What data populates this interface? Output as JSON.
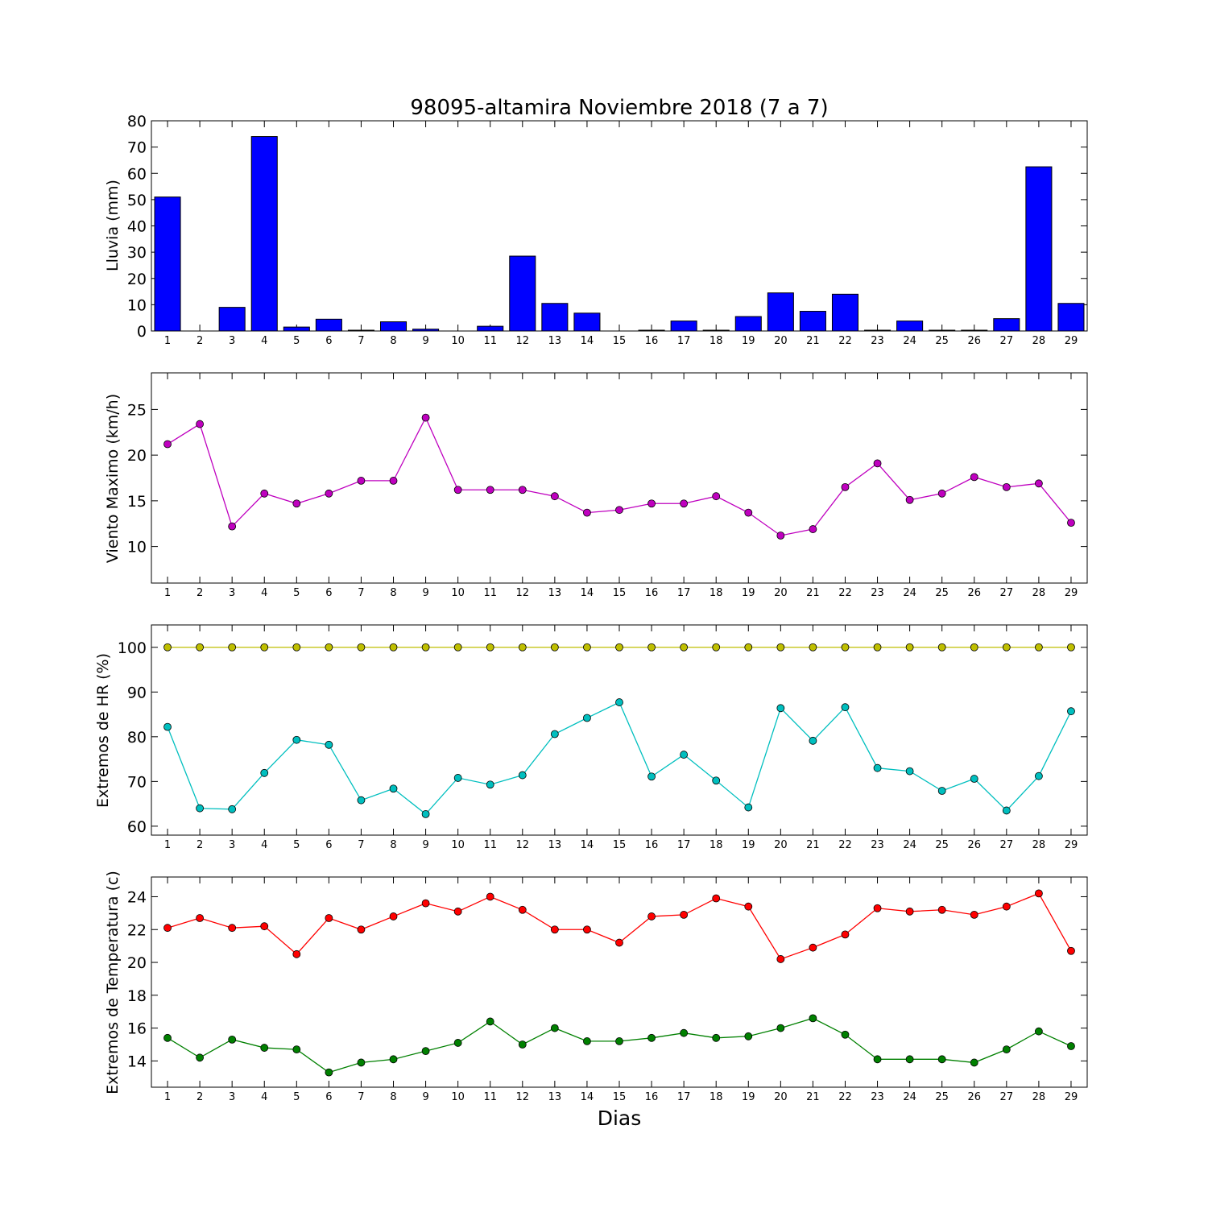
{
  "figure": {
    "title": "98095-altamira Noviembre 2018  (7 a 7)",
    "xlabel": "Dias"
  },
  "chart_data": [
    {
      "type": "bar",
      "ylabel": "Lluvia (mm)",
      "categories": [
        "1",
        "2",
        "3",
        "4",
        "5",
        "6",
        "7",
        "8",
        "9",
        "10",
        "11",
        "12",
        "13",
        "14",
        "15",
        "16",
        "17",
        "18",
        "19",
        "20",
        "21",
        "22",
        "23",
        "24",
        "25",
        "26",
        "27",
        "28",
        "29"
      ],
      "ylim": [
        0,
        80
      ],
      "yticks": [
        0,
        10,
        20,
        30,
        40,
        50,
        60,
        70,
        80
      ],
      "series": [
        {
          "color": "#0000ff",
          "values": [
            51,
            0,
            9,
            74,
            1.5,
            4.5,
            0.3,
            3.5,
            0.7,
            0,
            1.8,
            28.5,
            10.5,
            6.8,
            0,
            0.3,
            3.8,
            0.3,
            5.5,
            14.5,
            7.5,
            14,
            0.3,
            3.8,
            0.3,
            0.3,
            4.7,
            62.5,
            10.5
          ]
        }
      ],
      "grid": false
    },
    {
      "type": "line",
      "ylabel": "Viento Maximo (km/h)",
      "x": [
        1,
        2,
        3,
        4,
        5,
        6,
        7,
        8,
        9,
        10,
        11,
        12,
        13,
        14,
        15,
        16,
        17,
        18,
        19,
        20,
        21,
        22,
        23,
        24,
        25,
        26,
        27,
        28,
        29
      ],
      "ylim": [
        6,
        29
      ],
      "yticks": [
        10,
        15,
        20,
        25
      ],
      "series": [
        {
          "color": "#bf00bf",
          "values": [
            21.2,
            23.4,
            12.2,
            15.8,
            14.7,
            15.8,
            17.2,
            17.2,
            24.1,
            16.2,
            16.2,
            16.2,
            15.5,
            13.7,
            14.0,
            14.7,
            14.7,
            15.5,
            13.7,
            11.2,
            11.9,
            16.5,
            19.1,
            15.1,
            15.8,
            17.6,
            16.5,
            16.9,
            12.6
          ]
        }
      ],
      "grid": false
    },
    {
      "type": "line",
      "ylabel": "Extremos de HR (%)",
      "x": [
        1,
        2,
        3,
        4,
        5,
        6,
        7,
        8,
        9,
        10,
        11,
        12,
        13,
        14,
        15,
        16,
        17,
        18,
        19,
        20,
        21,
        22,
        23,
        24,
        25,
        26,
        27,
        28,
        29
      ],
      "ylim": [
        58,
        105
      ],
      "yticks": [
        60,
        70,
        80,
        90,
        100
      ],
      "series": [
        {
          "color": "#bfbf00",
          "values": [
            100,
            100,
            100,
            100,
            100,
            100,
            100,
            100,
            100,
            100,
            100,
            100,
            100,
            100,
            100,
            100,
            100,
            100,
            100,
            100,
            100,
            100,
            100,
            100,
            100,
            100,
            100,
            100,
            100
          ]
        },
        {
          "color": "#00bfbf",
          "values": [
            82.2,
            64.0,
            63.8,
            71.9,
            79.3,
            78.2,
            65.8,
            68.4,
            62.7,
            70.8,
            69.3,
            71.4,
            80.6,
            84.2,
            87.7,
            71.1,
            76.0,
            70.2,
            64.2,
            86.4,
            79.1,
            86.6,
            73.0,
            72.3,
            67.9,
            70.6,
            63.5,
            71.2,
            85.7
          ]
        }
      ],
      "grid": false
    },
    {
      "type": "line",
      "ylabel": "Extremos de Temperatura (c)",
      "x": [
        1,
        2,
        3,
        4,
        5,
        6,
        7,
        8,
        9,
        10,
        11,
        12,
        13,
        14,
        15,
        16,
        17,
        18,
        19,
        20,
        21,
        22,
        23,
        24,
        25,
        26,
        27,
        28,
        29
      ],
      "ylim": [
        12.4,
        25.2
      ],
      "yticks": [
        14,
        16,
        18,
        20,
        22,
        24
      ],
      "series": [
        {
          "color": "#ff0000",
          "values": [
            22.1,
            22.7,
            22.1,
            22.2,
            20.5,
            22.7,
            22.0,
            22.8,
            23.6,
            23.1,
            24.0,
            23.2,
            22.0,
            22.0,
            21.2,
            22.8,
            22.9,
            23.9,
            23.4,
            20.2,
            20.9,
            21.7,
            23.3,
            23.1,
            23.2,
            22.9,
            23.4,
            24.2,
            20.7
          ]
        },
        {
          "color": "#008000",
          "values": [
            15.4,
            14.2,
            15.3,
            14.8,
            14.7,
            13.3,
            13.9,
            14.1,
            14.6,
            15.1,
            16.4,
            15.0,
            16.0,
            15.2,
            15.2,
            15.4,
            15.7,
            15.4,
            15.5,
            16.0,
            16.6,
            15.6,
            14.1,
            14.1,
            14.1,
            13.9,
            14.7,
            15.8,
            14.9
          ]
        }
      ],
      "grid": false
    }
  ]
}
